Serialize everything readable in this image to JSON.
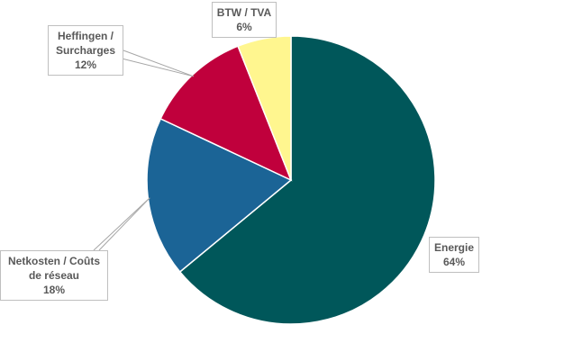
{
  "chart_data": {
    "type": "pie",
    "categories": [
      "Energie",
      "Netkosten / Coûts de réseau",
      "Heffingen / Surcharges",
      "BTW / TVA"
    ],
    "values": [
      64,
      18,
      12,
      6
    ],
    "value_labels": [
      "64%",
      "18%",
      "12%",
      "6%"
    ],
    "colors": [
      "#00575a",
      "#1b6496",
      "#c0003c",
      "#fff68f"
    ]
  }
}
